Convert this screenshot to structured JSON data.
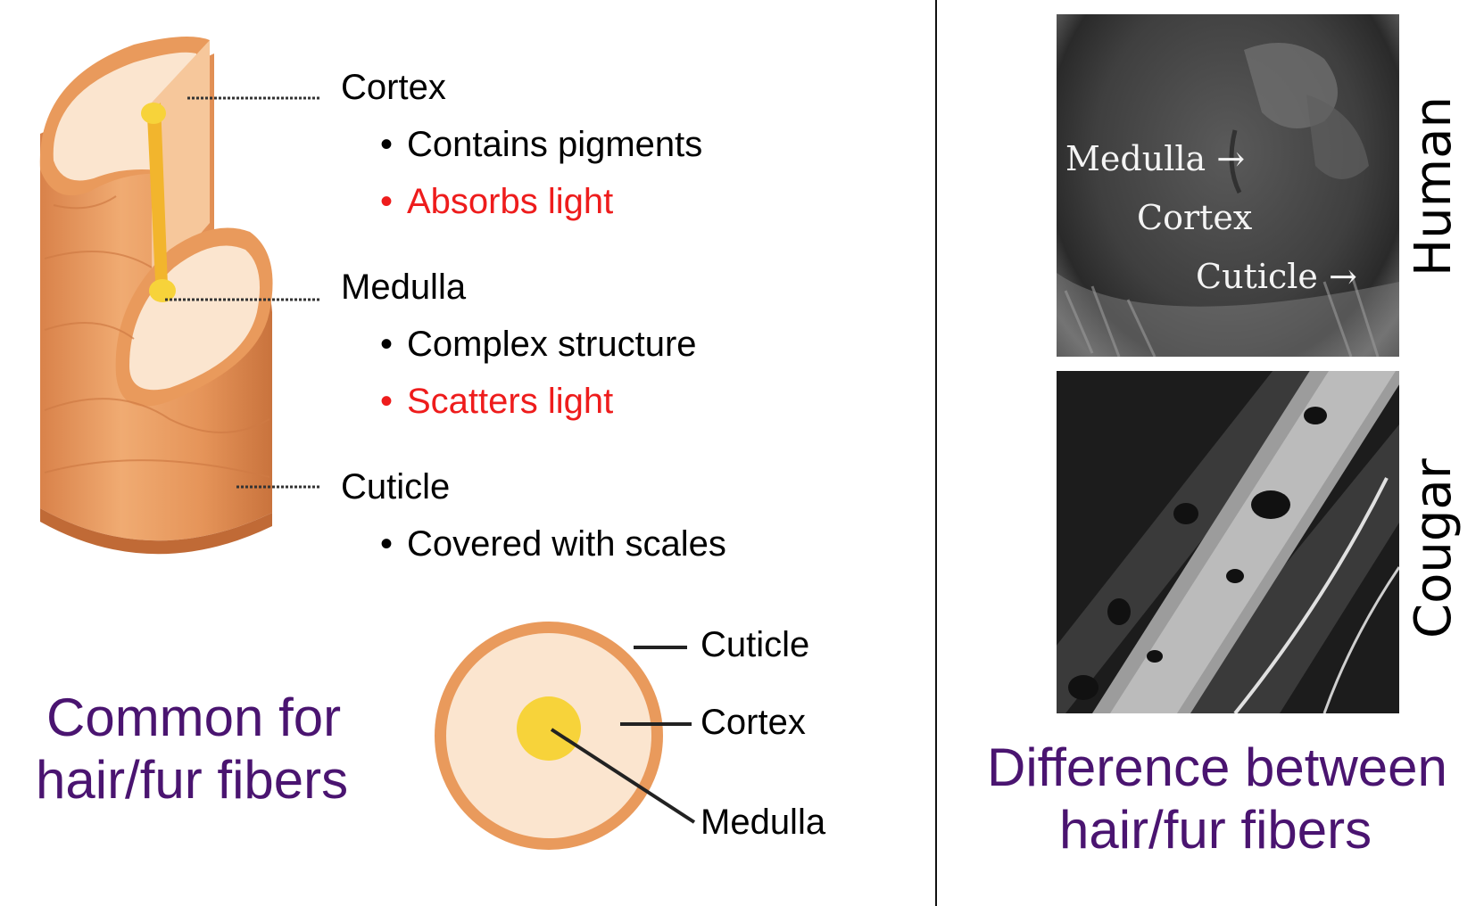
{
  "left": {
    "labels": {
      "cortex": {
        "title": "Cortex",
        "bullets": [
          {
            "text": "Contains pigments",
            "color": "#000000"
          },
          {
            "text": "Absorbs light",
            "color": "#ee1c1c"
          }
        ]
      },
      "medulla": {
        "title": "Medulla",
        "bullets": [
          {
            "text": "Complex structure",
            "color": "#000000"
          },
          {
            "text": "Scatters light",
            "color": "#ee1c1c"
          }
        ]
      },
      "cuticle": {
        "title": "Cuticle",
        "bullets": [
          {
            "text": "Covered with scales",
            "color": "#000000"
          }
        ]
      }
    },
    "cross_section": {
      "cuticle": "Cuticle",
      "cortex": "Cortex",
      "medulla": "Medulla"
    },
    "caption_line1": "Common for",
    "caption_line2": "hair/fur fibers",
    "bullet_char": "•"
  },
  "right": {
    "human_image": {
      "side_label": "Human",
      "medulla": "Medulla",
      "cortex": "Cortex",
      "cuticle": "Cuticle",
      "arrow": "→"
    },
    "cougar_image": {
      "side_label": "Cougar"
    },
    "caption_line1": "Difference between",
    "caption_line2": "hair/fur fibers"
  },
  "colors": {
    "caption": "#4a1470",
    "highlight": "#ee1c1c",
    "hair_outer": "#e99a5c",
    "hair_inner": "#fbe5cf",
    "medulla": "#f7d33a"
  }
}
